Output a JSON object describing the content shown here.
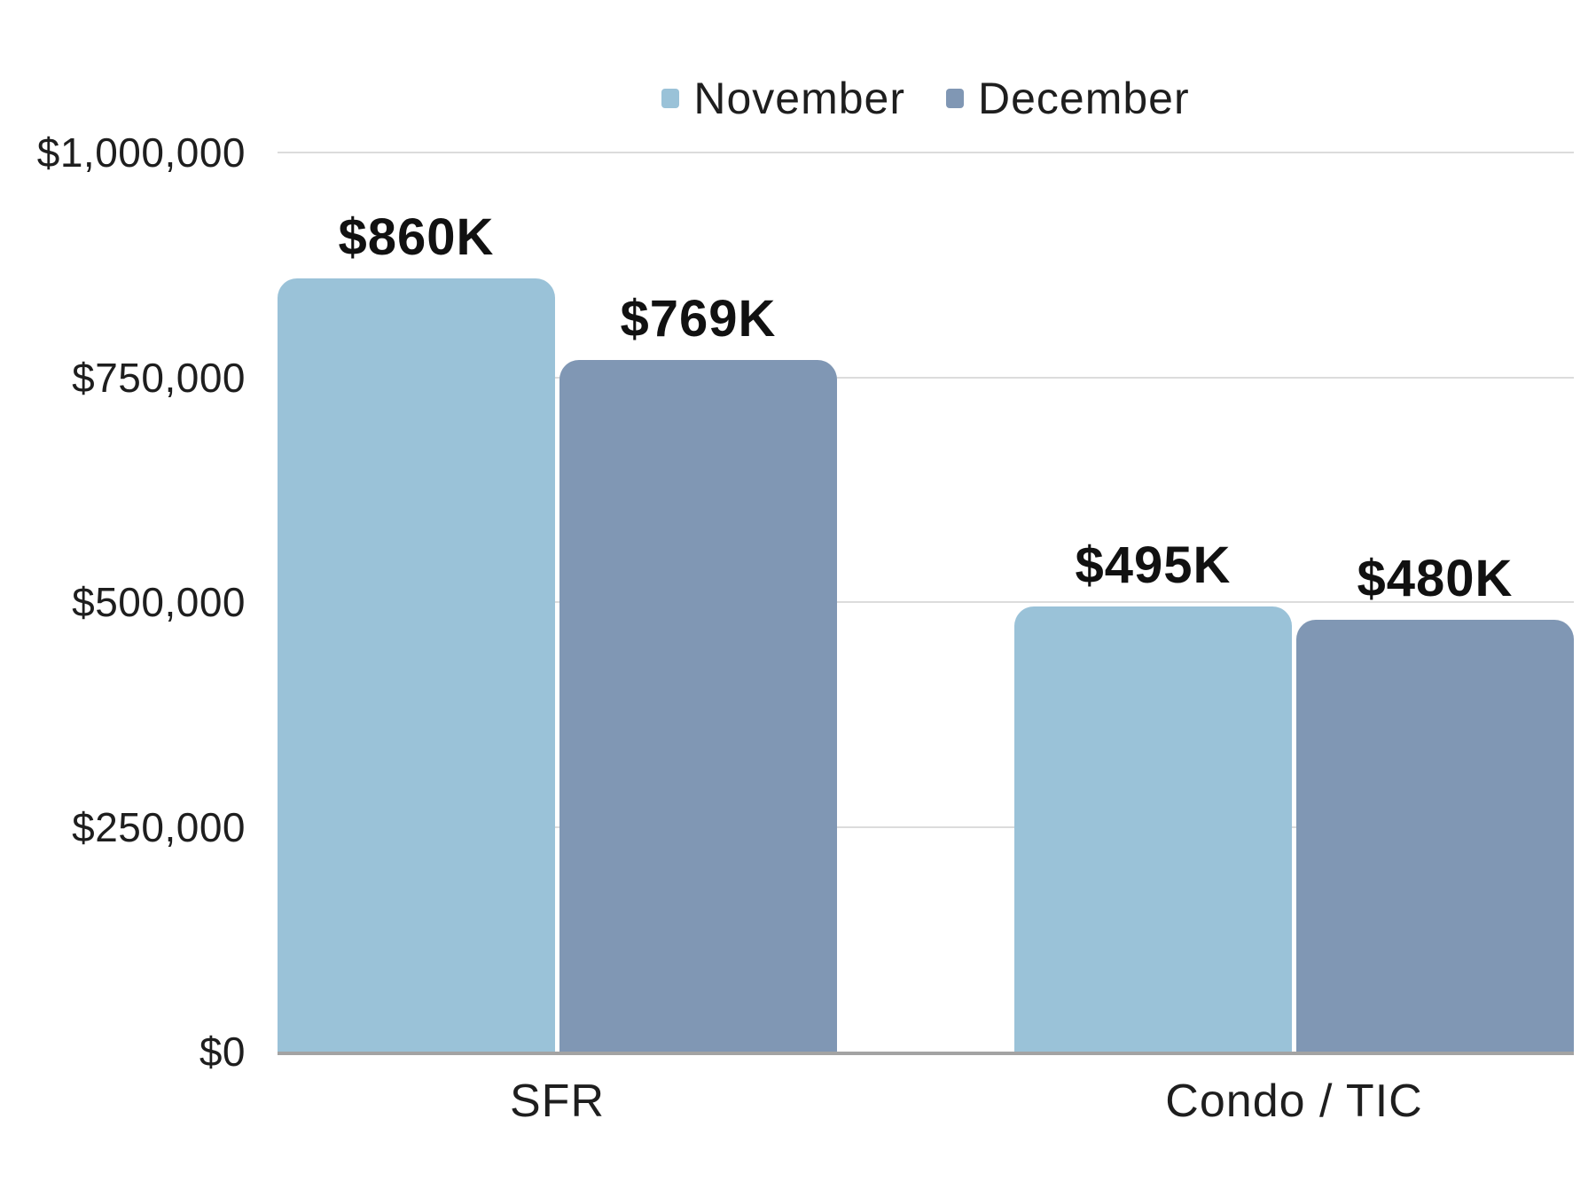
{
  "chart_data": {
    "type": "bar",
    "title": "",
    "categories": [
      "SFR",
      "Condo / TIC"
    ],
    "series": [
      {
        "name": "November",
        "color": "#9ac2d8",
        "values": [
          860000,
          495000
        ],
        "data_labels": [
          "$860K",
          "$495K"
        ]
      },
      {
        "name": "December",
        "color": "#8097b4",
        "values": [
          769000,
          480000
        ],
        "data_labels": [
          "$769K",
          "$480K"
        ]
      }
    ],
    "y_axis": {
      "min": 0,
      "max": 1000000,
      "tick_interval": 250000,
      "tick_labels": [
        "$0",
        "$250,000",
        "$500,000",
        "$750,000",
        "$1,000,000"
      ]
    },
    "legend": {
      "position": "top",
      "entries": [
        "November",
        "December"
      ]
    },
    "grid": "horizontal",
    "colors": {
      "november_bar": "#9ac2d8",
      "december_bar": "#8097b4",
      "grid_line": "#dcdcdc",
      "axis_line": "#a3a3a3",
      "text": "#1e1e1e",
      "background": "#ffffff"
    }
  }
}
